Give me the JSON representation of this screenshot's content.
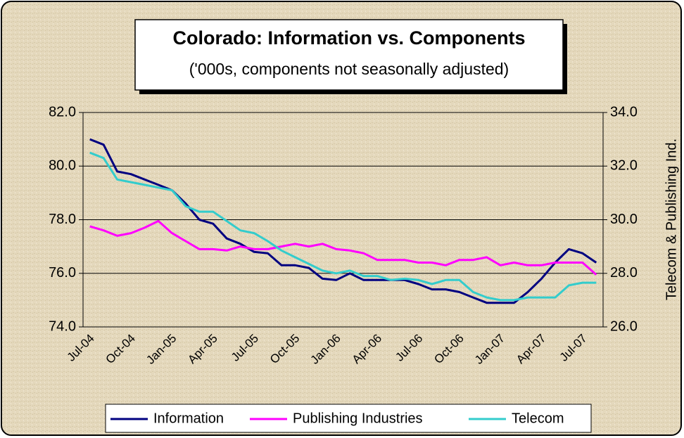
{
  "chart_data": {
    "type": "line",
    "title": "Colorado: Information vs. Components",
    "subtitle": "('000s, components not seasonally adjusted)",
    "y2_label": "Telecom & Publishing Ind.",
    "categories": [
      "Jul-04",
      null,
      null,
      "Oct-04",
      null,
      null,
      "Jan-05",
      null,
      null,
      "Apr-05",
      null,
      null,
      "Jul-05",
      null,
      null,
      "Oct-05",
      null,
      null,
      "Jan-06",
      null,
      null,
      "Apr-06",
      null,
      null,
      "Jul-06",
      null,
      null,
      "Oct-06",
      null,
      null,
      "Jan-07",
      null,
      null,
      "Apr-07",
      null,
      null,
      "Jul-07",
      null
    ],
    "series": [
      {
        "name": "Information",
        "color": "#000080",
        "axis": "y",
        "values": [
          81.0,
          80.8,
          79.8,
          79.7,
          79.5,
          79.3,
          79.1,
          78.6,
          78.0,
          77.85,
          77.3,
          77.1,
          76.8,
          76.75,
          76.3,
          76.3,
          76.2,
          75.8,
          75.75,
          76.0,
          75.75,
          75.75,
          75.75,
          75.75,
          75.6,
          75.4,
          75.4,
          75.3,
          75.1,
          74.9,
          74.9,
          74.9,
          75.3,
          75.8,
          76.4,
          76.9,
          76.75,
          76.4
        ]
      },
      {
        "name": "Publishing Industries",
        "color": "#ff00ff",
        "axis": "y2",
        "values": [
          29.75,
          29.6,
          29.4,
          29.5,
          29.7,
          29.95,
          29.5,
          29.2,
          28.9,
          28.9,
          28.85,
          29.0,
          28.9,
          28.9,
          29.0,
          29.1,
          29.0,
          29.1,
          28.9,
          28.85,
          28.75,
          28.5,
          28.5,
          28.5,
          28.4,
          28.4,
          28.3,
          28.5,
          28.5,
          28.6,
          28.3,
          28.4,
          28.3,
          28.3,
          28.4,
          28.4,
          28.4,
          27.95
        ]
      },
      {
        "name": "Telecom",
        "color": "#33cccc",
        "axis": "y2",
        "values": [
          32.5,
          32.3,
          31.5,
          31.4,
          31.3,
          31.2,
          31.1,
          30.5,
          30.3,
          30.3,
          29.95,
          29.6,
          29.5,
          29.2,
          28.85,
          28.6,
          28.35,
          28.1,
          28.0,
          28.1,
          27.9,
          27.9,
          27.75,
          27.8,
          27.75,
          27.6,
          27.75,
          27.75,
          27.3,
          27.1,
          27.0,
          27.0,
          27.1,
          27.1,
          27.1,
          27.55,
          27.65,
          27.65
        ]
      }
    ],
    "ylim": [
      74,
      82
    ],
    "yticks": [
      {
        "value": 74,
        "label": "74.0"
      },
      {
        "value": 76,
        "label": "76.0"
      },
      {
        "value": 78,
        "label": "78.0"
      },
      {
        "value": 80,
        "label": "80.0"
      },
      {
        "value": 82,
        "label": "82.0"
      }
    ],
    "y2lim": [
      26,
      34
    ],
    "y2ticks": [
      {
        "value": 26,
        "label": "26.0"
      },
      {
        "value": 28,
        "label": "28.0"
      },
      {
        "value": 30,
        "label": "30.0"
      },
      {
        "value": 32,
        "label": "32.0"
      },
      {
        "value": 34,
        "label": "34.0"
      }
    ],
    "grid": true,
    "legend": "bottom"
  }
}
